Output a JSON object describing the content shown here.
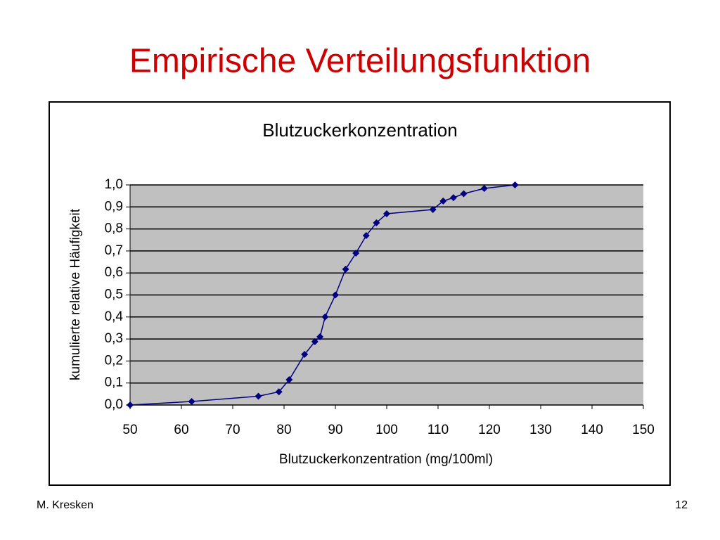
{
  "slide": {
    "title": "Empirische Verteilungsfunktion",
    "author": "M. Kresken",
    "page": "12"
  },
  "chart_data": {
    "type": "line",
    "title": "Blutzuckerkonzentration",
    "x_label": "Blutzuckerkonzentration (mg/100ml)",
    "y_label": "kumulierte relative Häufigkeit",
    "series": [
      {
        "name": "Blutzuckerkonzentration",
        "color": "#000080",
        "x": [
          50,
          62,
          75,
          79,
          81,
          84,
          86,
          87,
          88,
          90,
          92,
          94,
          96,
          98,
          100,
          109,
          111,
          113,
          115,
          119,
          125
        ],
        "values": [
          0,
          0.016,
          0.04,
          0.06,
          0.115,
          0.23,
          0.288,
          0.31,
          0.4,
          0.5,
          0.617,
          0.69,
          0.77,
          0.828,
          0.869,
          0.888,
          0.927,
          0.942,
          0.96,
          0.984,
          1.0
        ]
      }
    ],
    "xlim": [
      50,
      150
    ],
    "ylim": [
      0,
      1
    ],
    "xticks": [
      50,
      60,
      70,
      80,
      90,
      100,
      110,
      120,
      130,
      140,
      150
    ],
    "yticks": [
      {
        "value": 0,
        "label": "0,0"
      },
      {
        "value": 0.1,
        "label": "0,1"
      },
      {
        "value": 0.2,
        "label": "0,2"
      },
      {
        "value": 0.3,
        "label": "0,3"
      },
      {
        "value": 0.4,
        "label": "0,4"
      },
      {
        "value": 0.5,
        "label": "0,5"
      },
      {
        "value": 0.6,
        "label": "0,6"
      },
      {
        "value": 0.7,
        "label": "0,7"
      },
      {
        "value": 0.8,
        "label": "0,8"
      },
      {
        "value": 0.9,
        "label": "0,9"
      },
      {
        "value": 1,
        "label": "1,0"
      }
    ],
    "grid": true,
    "plot_background": "#c0c0c0"
  }
}
